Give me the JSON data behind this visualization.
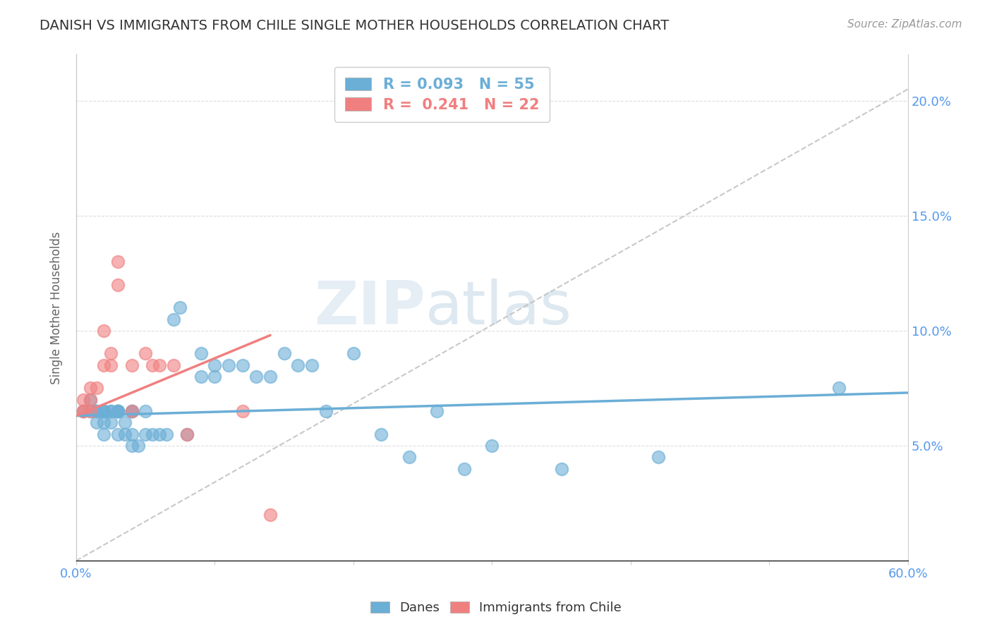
{
  "title": "DANISH VS IMMIGRANTS FROM CHILE SINGLE MOTHER HOUSEHOLDS CORRELATION CHART",
  "source_text": "Source: ZipAtlas.com",
  "ylabel": "Single Mother Households",
  "xlim": [
    0.0,
    0.6
  ],
  "ylim": [
    0.0,
    0.22
  ],
  "danes_color": "#6baed6",
  "immigrants_color": "#f08080",
  "danes_R": "0.093",
  "danes_N": "55",
  "immigrants_R": "0.241",
  "immigrants_N": "22",
  "legend_danes": "Danes",
  "legend_immigrants": "Immigrants from Chile",
  "watermark_zip": "ZIP",
  "watermark_atlas": "atlas",
  "danes_x": [
    0.005,
    0.01,
    0.01,
    0.015,
    0.015,
    0.015,
    0.02,
    0.02,
    0.02,
    0.02,
    0.02,
    0.025,
    0.025,
    0.025,
    0.03,
    0.03,
    0.03,
    0.03,
    0.03,
    0.035,
    0.035,
    0.04,
    0.04,
    0.04,
    0.04,
    0.045,
    0.05,
    0.05,
    0.055,
    0.06,
    0.065,
    0.07,
    0.075,
    0.08,
    0.09,
    0.09,
    0.1,
    0.1,
    0.11,
    0.12,
    0.13,
    0.14,
    0.15,
    0.16,
    0.17,
    0.18,
    0.2,
    0.22,
    0.24,
    0.26,
    0.28,
    0.3,
    0.35,
    0.42,
    0.55
  ],
  "danes_y": [
    0.065,
    0.07,
    0.065,
    0.065,
    0.065,
    0.06,
    0.065,
    0.065,
    0.06,
    0.055,
    0.065,
    0.065,
    0.065,
    0.06,
    0.065,
    0.065,
    0.065,
    0.055,
    0.065,
    0.06,
    0.055,
    0.065,
    0.055,
    0.05,
    0.065,
    0.05,
    0.065,
    0.055,
    0.055,
    0.055,
    0.055,
    0.105,
    0.11,
    0.055,
    0.08,
    0.09,
    0.08,
    0.085,
    0.085,
    0.085,
    0.08,
    0.08,
    0.09,
    0.085,
    0.085,
    0.065,
    0.09,
    0.055,
    0.045,
    0.065,
    0.04,
    0.05,
    0.04,
    0.045,
    0.075
  ],
  "immigrants_x": [
    0.005,
    0.005,
    0.005,
    0.01,
    0.01,
    0.01,
    0.015,
    0.02,
    0.02,
    0.025,
    0.025,
    0.03,
    0.03,
    0.04,
    0.04,
    0.05,
    0.055,
    0.06,
    0.07,
    0.08,
    0.12,
    0.14
  ],
  "immigrants_y": [
    0.065,
    0.07,
    0.065,
    0.065,
    0.07,
    0.075,
    0.075,
    0.085,
    0.1,
    0.085,
    0.09,
    0.12,
    0.13,
    0.085,
    0.065,
    0.09,
    0.085,
    0.085,
    0.085,
    0.055,
    0.065,
    0.02
  ],
  "danes_trend_x": [
    0.0,
    0.6
  ],
  "danes_trend_y": [
    0.063,
    0.073
  ],
  "immigrants_trend_x": [
    0.0,
    0.14
  ],
  "immigrants_trend_y": [
    0.063,
    0.098
  ],
  "dashed_line_x": [
    0.0,
    0.6
  ],
  "dashed_line_y": [
    0.0,
    0.205
  ],
  "ytick_vals": [
    0.05,
    0.1,
    0.15,
    0.2
  ],
  "ytick_labels": [
    "5.0%",
    "10.0%",
    "15.0%",
    "20.0%"
  ],
  "xtick_show": [
    0.0,
    0.6
  ],
  "xtick_labels": [
    "0.0%",
    "60.0%"
  ],
  "tick_color": "#5599ee",
  "grid_color": "#dddddd",
  "spine_color": "#cccccc",
  "title_fontsize": 14,
  "axis_fontsize": 13,
  "legend_fontsize": 15
}
